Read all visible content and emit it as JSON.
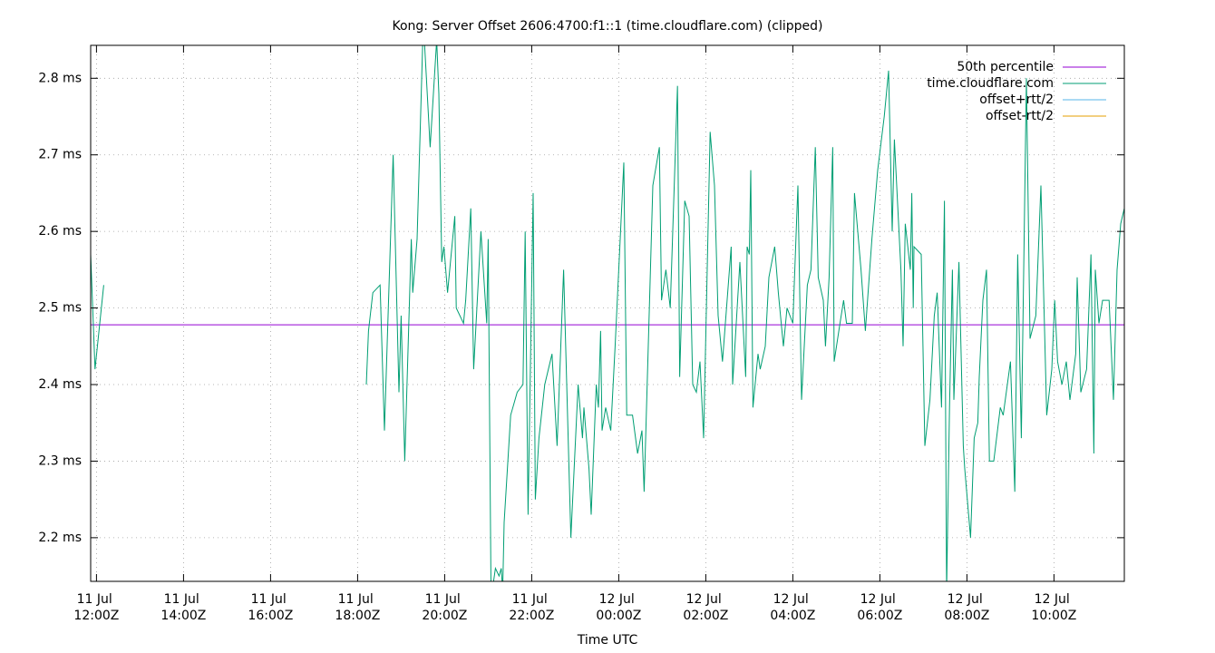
{
  "chart_data": {
    "type": "line",
    "title": "Kong: Server Offset 2606:4700:f1::1 (time.cloudflare.com) (clipped)",
    "x_label": "Time UTC",
    "xlim": [
      "11 Jul 11:52Z",
      "12 Jul 11:37Z"
    ],
    "xticks": [
      "11 Jul 12:00Z",
      "11 Jul 14:00Z",
      "11 Jul 16:00Z",
      "11 Jul 18:00Z",
      "11 Jul 20:00Z",
      "11 Jul 22:00Z",
      "12 Jul 00:00Z",
      "12 Jul 02:00Z",
      "12 Jul 04:00Z",
      "12 Jul 06:00Z",
      "12 Jul 08:00Z",
      "12 Jul 10:00Z"
    ],
    "ylim": [
      2.143,
      2.843
    ],
    "yticks": [
      {
        "value": 2.2,
        "label": "2.2 ms"
      },
      {
        "value": 2.3,
        "label": "2.3 ms"
      },
      {
        "value": 2.4,
        "label": "2.4 ms"
      },
      {
        "value": 2.5,
        "label": "2.5 ms"
      },
      {
        "value": 2.6,
        "label": "2.6 ms"
      },
      {
        "value": 2.7,
        "label": "2.7 ms"
      },
      {
        "value": 2.8,
        "label": "2.8 ms"
      }
    ],
    "grid": true,
    "legend": "top-right",
    "percentile": {
      "name": "50th percentile",
      "color": "#9400d3",
      "value": 2.478
    },
    "x": [
      "11 Jul 11:52Z",
      "11 Jul 11:58Z",
      "11 Jul 12:10Z",
      "11 Jul 15:00Z",
      "11 Jul 18:12Z",
      "11 Jul 18:15Z",
      "11 Jul 18:21Z",
      "11 Jul 18:31Z",
      "11 Jul 18:37Z",
      "11 Jul 18:49Z",
      "11 Jul 18:57Z",
      "11 Jul 19:00Z",
      "11 Jul 19:05Z",
      "11 Jul 19:14Z",
      "11 Jul 19:16Z",
      "11 Jul 19:22Z",
      "11 Jul 19:30Z",
      "11 Jul 19:32Z",
      "11 Jul 19:40Z",
      "11 Jul 19:49Z",
      "11 Jul 19:52Z",
      "11 Jul 19:56Z",
      "11 Jul 19:59Z",
      "11 Jul 20:04Z",
      "11 Jul 20:14Z",
      "11 Jul 20:16Z",
      "11 Jul 20:26Z",
      "11 Jul 20:29Z",
      "11 Jul 20:36Z",
      "11 Jul 20:40Z",
      "11 Jul 20:50Z",
      "11 Jul 20:58Z",
      "11 Jul 21:00Z",
      "11 Jul 21:04Z",
      "11 Jul 21:10Z",
      "11 Jul 21:15Z",
      "11 Jul 21:18Z",
      "11 Jul 21:20Z",
      "11 Jul 21:22Z",
      "11 Jul 21:31Z",
      "11 Jul 21:40Z",
      "11 Jul 21:48Z",
      "11 Jul 21:51Z",
      "11 Jul 21:55Z",
      "11 Jul 22:02Z",
      "11 Jul 22:05Z",
      "11 Jul 22:10Z",
      "11 Jul 22:18Z",
      "11 Jul 22:28Z",
      "11 Jul 22:35Z",
      "11 Jul 22:44Z",
      "11 Jul 22:46Z",
      "11 Jul 22:54Z",
      "11 Jul 23:04Z",
      "11 Jul 23:10Z",
      "11 Jul 23:12Z",
      "11 Jul 23:19Z",
      "11 Jul 23:22Z",
      "11 Jul 23:29Z",
      "11 Jul 23:32Z",
      "11 Jul 23:35Z",
      "11 Jul 23:37Z",
      "11 Jul 23:42Z",
      "11 Jul 23:49Z",
      "11 Jul 23:55Z",
      "12 Jul 00:07Z",
      "12 Jul 00:11Z",
      "12 Jul 00:19Z",
      "12 Jul 00:26Z",
      "12 Jul 00:32Z",
      "12 Jul 00:35Z",
      "12 Jul 00:47Z",
      "12 Jul 00:56Z",
      "12 Jul 00:59Z",
      "12 Jul 01:05Z",
      "12 Jul 01:11Z",
      "12 Jul 01:21Z",
      "12 Jul 01:24Z",
      "12 Jul 01:31Z",
      "12 Jul 01:37Z",
      "12 Jul 01:42Z",
      "12 Jul 01:47Z",
      "12 Jul 01:52Z",
      "12 Jul 01:57Z",
      "12 Jul 02:06Z",
      "12 Jul 02:12Z",
      "12 Jul 02:17Z",
      "12 Jul 02:23Z",
      "12 Jul 02:35Z",
      "12 Jul 02:37Z",
      "12 Jul 02:47Z",
      "12 Jul 02:55Z",
      "12 Jul 02:57Z",
      "12 Jul 03:00Z",
      "12 Jul 03:02Z",
      "12 Jul 03:05Z",
      "12 Jul 03:12Z",
      "12 Jul 03:15Z",
      "12 Jul 03:22Z",
      "12 Jul 03:27Z",
      "12 Jul 03:35Z",
      "12 Jul 03:40Z",
      "12 Jul 03:47Z",
      "12 Jul 03:52Z",
      "12 Jul 04:00Z",
      "12 Jul 04:07Z",
      "12 Jul 04:12Z",
      "12 Jul 04:20Z",
      "12 Jul 04:25Z",
      "12 Jul 04:31Z",
      "12 Jul 04:35Z",
      "12 Jul 04:42Z",
      "12 Jul 04:45Z",
      "12 Jul 04:50Z",
      "12 Jul 04:55Z",
      "12 Jul 04:57Z",
      "12 Jul 05:05Z",
      "12 Jul 05:10Z",
      "12 Jul 05:14Z",
      "12 Jul 05:22Z",
      "12 Jul 05:25Z",
      "12 Jul 05:34Z",
      "12 Jul 05:40Z",
      "12 Jul 05:49Z",
      "12 Jul 05:57Z",
      "12 Jul 06:06Z",
      "12 Jul 06:12Z",
      "12 Jul 06:17Z",
      "12 Jul 06:20Z",
      "12 Jul 06:29Z",
      "12 Jul 06:32Z",
      "12 Jul 06:35Z",
      "12 Jul 06:42Z",
      "12 Jul 06:44Z",
      "12 Jul 06:46Z",
      "12 Jul 06:47Z",
      "12 Jul 06:57Z",
      "12 Jul 07:02Z",
      "12 Jul 07:09Z",
      "12 Jul 07:15Z",
      "12 Jul 07:19Z",
      "12 Jul 07:25Z",
      "12 Jul 07:29Z",
      "12 Jul 07:32Z",
      "12 Jul 07:36Z",
      "12 Jul 07:40Z",
      "12 Jul 07:42Z",
      "12 Jul 07:49Z",
      "12 Jul 07:55Z",
      "12 Jul 07:57Z",
      "12 Jul 08:05Z",
      "12 Jul 08:10Z",
      "12 Jul 08:15Z",
      "12 Jul 08:17Z",
      "12 Jul 08:22Z",
      "12 Jul 08:27Z",
      "12 Jul 08:31Z",
      "12 Jul 08:37Z",
      "12 Jul 08:46Z",
      "12 Jul 08:50Z",
      "12 Jul 09:00Z",
      "12 Jul 09:06Z",
      "12 Jul 09:10Z",
      "12 Jul 09:15Z",
      "12 Jul 09:22Z",
      "12 Jul 09:27Z",
      "12 Jul 09:35Z",
      "12 Jul 09:42Z",
      "12 Jul 09:50Z",
      "12 Jul 09:57Z",
      "12 Jul 10:01Z",
      "12 Jul 10:05Z",
      "12 Jul 10:11Z",
      "12 Jul 10:17Z",
      "12 Jul 10:22Z",
      "12 Jul 10:30Z",
      "12 Jul 10:32Z",
      "12 Jul 10:37Z",
      "12 Jul 10:45Z",
      "12 Jul 10:51Z",
      "12 Jul 10:55Z",
      "12 Jul 10:57Z",
      "12 Jul 11:02Z",
      "12 Jul 11:07Z",
      "12 Jul 11:16Z",
      "12 Jul 11:22Z",
      "12 Jul 11:27Z",
      "12 Jul 11:32Z",
      "12 Jul 11:37Z"
    ],
    "series": [
      {
        "name": "time.cloudflare.com",
        "color": "#009e73",
        "values": [
          2.57,
          2.42,
          2.53,
          null,
          2.4,
          2.47,
          2.52,
          2.53,
          2.34,
          2.7,
          2.39,
          2.49,
          2.3,
          2.59,
          2.52,
          2.59,
          2.855,
          2.85,
          2.71,
          2.85,
          2.78,
          2.56,
          2.58,
          2.52,
          2.62,
          2.5,
          2.48,
          2.51,
          2.63,
          2.42,
          2.6,
          2.48,
          2.59,
          2.12,
          2.16,
          2.15,
          2.16,
          2.13,
          2.22,
          2.36,
          2.39,
          2.4,
          2.6,
          2.23,
          2.65,
          2.25,
          2.33,
          2.4,
          2.44,
          2.32,
          2.55,
          2.48,
          2.2,
          2.4,
          2.33,
          2.37,
          2.29,
          2.23,
          2.4,
          2.37,
          2.47,
          2.34,
          2.37,
          2.34,
          2.45,
          2.69,
          2.36,
          2.36,
          2.31,
          2.34,
          2.26,
          2.66,
          2.71,
          2.51,
          2.55,
          2.5,
          2.79,
          2.41,
          2.64,
          2.62,
          2.4,
          2.39,
          2.43,
          2.33,
          2.73,
          2.66,
          2.49,
          2.43,
          2.58,
          2.4,
          2.56,
          2.41,
          2.58,
          2.57,
          2.68,
          2.37,
          2.44,
          2.42,
          2.45,
          2.54,
          2.58,
          2.52,
          2.45,
          2.5,
          2.48,
          2.66,
          2.38,
          2.53,
          2.55,
          2.71,
          2.54,
          2.51,
          2.45,
          2.54,
          2.71,
          2.43,
          2.48,
          2.51,
          2.48,
          2.48,
          2.65,
          2.55,
          2.47,
          2.59,
          2.68,
          2.75,
          2.81,
          2.6,
          2.72,
          2.55,
          2.45,
          2.61,
          2.55,
          2.65,
          2.5,
          2.58,
          2.57,
          2.32,
          2.38,
          2.49,
          2.52,
          2.37,
          2.64,
          2.13,
          2.37,
          2.55,
          2.38,
          2.56,
          2.32,
          2.29,
          2.2,
          2.33,
          2.35,
          2.41,
          2.51,
          2.55,
          2.3,
          2.3,
          2.37,
          2.36,
          2.43,
          2.26,
          2.57,
          2.33,
          2.8,
          2.46,
          2.49,
          2.66,
          2.36,
          2.42,
          2.51,
          2.43,
          2.4,
          2.43,
          2.38,
          2.44,
          2.54,
          2.39,
          2.42,
          2.57,
          2.31,
          2.55,
          2.48,
          2.51,
          2.51,
          2.38,
          2.55,
          2.61,
          2.63
        ]
      },
      {
        "name": "offset+rtt/2",
        "color": "#56b4e9"
      },
      {
        "name": "offset-rtt/2",
        "color": "#e69f00"
      }
    ]
  }
}
